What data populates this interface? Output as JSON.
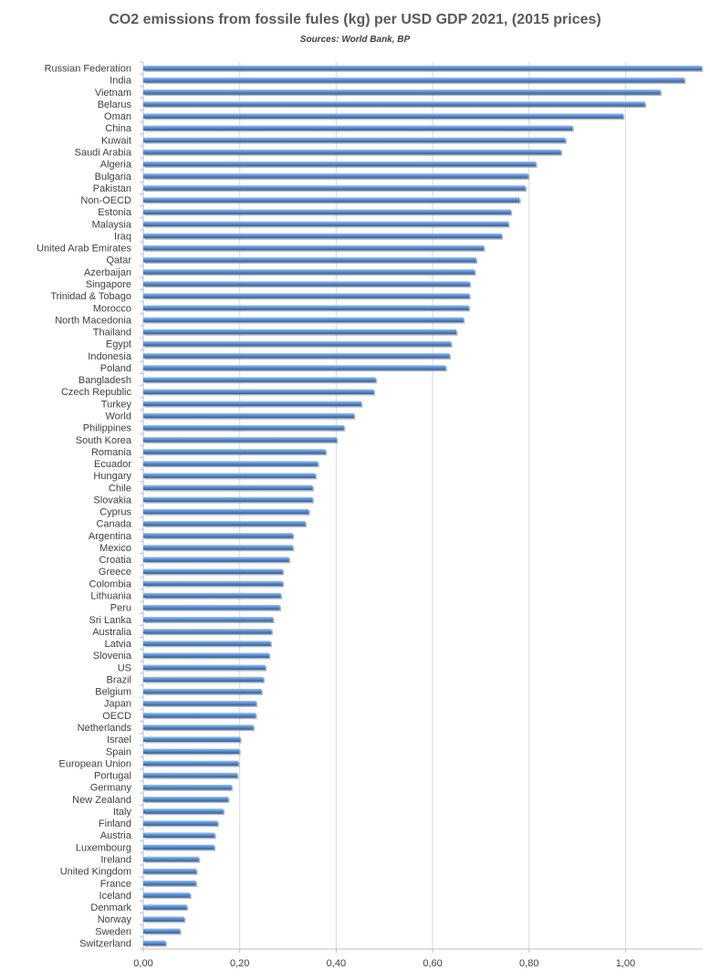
{
  "chart_data": {
    "type": "bar",
    "orientation": "horizontal",
    "title": "CO2 emissions from fossile fules (kg) per USD GDP 2021, (2015 prices)",
    "subtitle": "Sources: World Bank, BP",
    "xlabel": "",
    "ylabel": "",
    "xlim": [
      0,
      1.16
    ],
    "x_ticks": [
      "0,00",
      "0,20",
      "0,40",
      "0,60",
      "0,80",
      "1,00"
    ],
    "grid": "vertical",
    "legend": "none",
    "bar_color": "#5b8fd0",
    "categories": [
      "Russian Federation",
      "India",
      "Vietnam",
      "Belarus",
      "Oman",
      "China",
      "Kuwait",
      "Saudi Arabia",
      "Algeria",
      "Bulgaria",
      "Pakistan",
      "Non-OECD",
      "Estonia",
      "Malaysia",
      "Iraq",
      "United Arab Emirates",
      "Qatar",
      "Azerbaijan",
      "Singapore",
      "Trinidad & Tobago",
      "Morocco",
      "North Macedonia",
      "Thailand",
      "Egypt",
      "Indonesia",
      "Poland",
      "Bangladesh",
      "Czech Republic",
      "Turkey",
      "World",
      "Philippines",
      "South Korea",
      "Romania",
      "Ecuador",
      "Hungary",
      "Chile",
      "Slovakia",
      "Cyprus",
      "Canada",
      "Argentina",
      "Mexico",
      "Croatia",
      "Greece",
      "Colombia",
      "Lithuania",
      "Peru",
      "Sri Lanka",
      "Australia",
      "Latvia",
      "Slovenia",
      "US",
      "Brazil",
      "Belgium",
      "Japan",
      "OECD",
      "Netherlands",
      "Israel",
      "Spain",
      "European Union",
      "Portugal",
      "Germany",
      "New Zealand",
      "Italy",
      "Finland",
      "Austria",
      "Luxembourg",
      "Ireland",
      "United Kingdom",
      "France",
      "Iceland",
      "Denmark",
      "Norway",
      "Sweden",
      "Switzerland"
    ],
    "values": [
      1.158,
      1.122,
      1.072,
      1.04,
      0.995,
      0.89,
      0.875,
      0.866,
      0.814,
      0.798,
      0.792,
      0.78,
      0.762,
      0.757,
      0.743,
      0.706,
      0.69,
      0.687,
      0.677,
      0.676,
      0.675,
      0.664,
      0.649,
      0.638,
      0.635,
      0.627,
      0.482,
      0.478,
      0.452,
      0.437,
      0.416,
      0.401,
      0.378,
      0.362,
      0.357,
      0.351,
      0.351,
      0.343,
      0.336,
      0.31,
      0.31,
      0.302,
      0.289,
      0.289,
      0.285,
      0.283,
      0.269,
      0.266,
      0.264,
      0.261,
      0.253,
      0.249,
      0.245,
      0.234,
      0.233,
      0.228,
      0.201,
      0.199,
      0.197,
      0.195,
      0.183,
      0.176,
      0.166,
      0.154,
      0.148,
      0.147,
      0.115,
      0.11,
      0.109,
      0.097,
      0.09,
      0.085,
      0.076,
      0.046
    ]
  }
}
